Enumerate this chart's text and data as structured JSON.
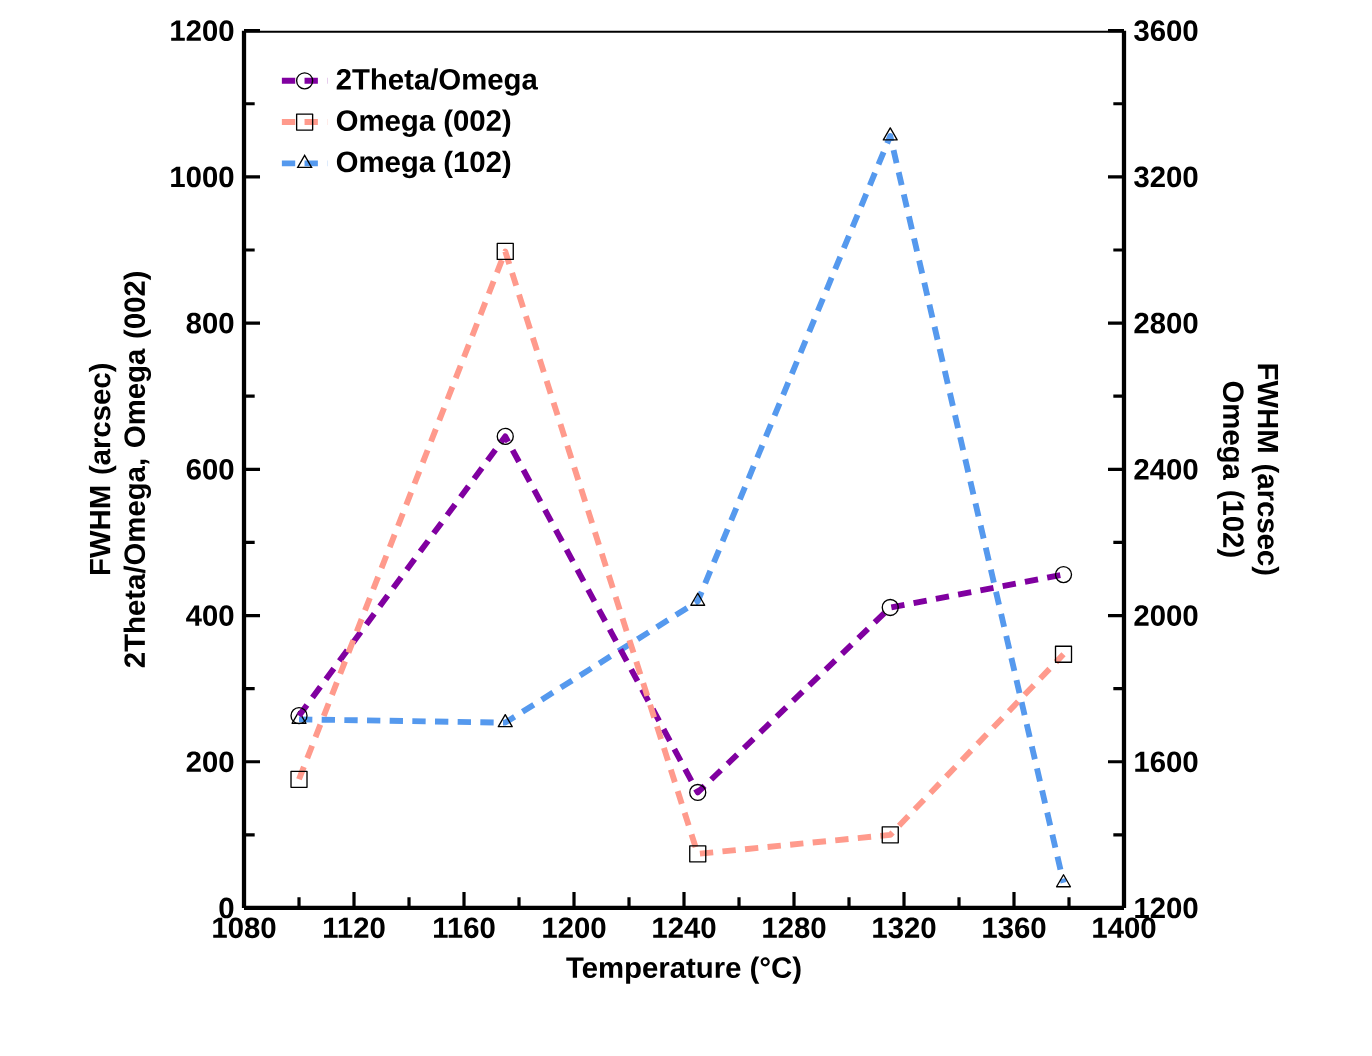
{
  "chart_data": {
    "type": "line",
    "xlabel": "Temperature (°C)",
    "ylabel": "FWHM (arcsec) 2Theta/Omega, Omega (002)",
    "y2label": "FWHM (arcsec) Omega (102)",
    "x": [
      1100,
      1175,
      1245,
      1315,
      1378
    ],
    "series": [
      {
        "name": "2Theta/Omega",
        "color": "#8000a0",
        "marker": "circle",
        "values": [
          263,
          645,
          158,
          411,
          456
        ]
      },
      {
        "name": "Omega (002)",
        "color": "#ff9a8c",
        "marker": "square",
        "values": [
          176,
          898,
          74,
          100,
          347
        ]
      },
      {
        "name": "Omega (102)",
        "color": "#5599ee",
        "marker": "triangle",
        "axis": "y2",
        "values": [
          1716,
          1707,
          2039,
          3312,
          1269
        ]
      }
    ],
    "xlim": [
      1080,
      1400
    ],
    "xticks": [
      1080,
      1120,
      1160,
      1200,
      1240,
      1280,
      1320,
      1360,
      1400
    ],
    "ylim": [
      0,
      1200
    ],
    "yticks": [
      0,
      200,
      400,
      600,
      800,
      1000,
      1200
    ],
    "y2lim": [
      1200,
      3600
    ],
    "y2ticks": [
      1200,
      1600,
      2000,
      2400,
      2800,
      3200,
      3600
    ],
    "line_style": "dashed",
    "grid": false,
    "legend": "top left"
  }
}
